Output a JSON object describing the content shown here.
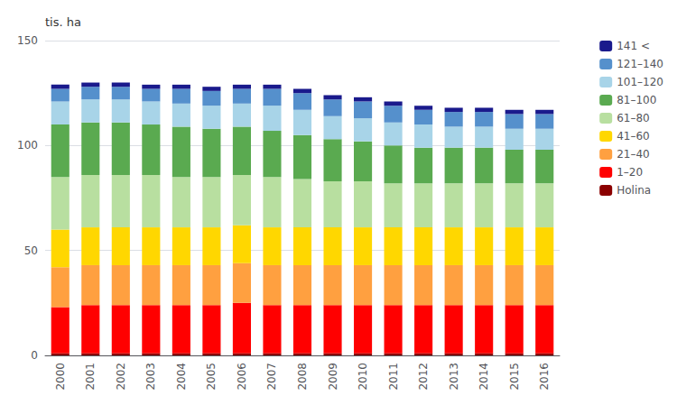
{
  "chart_data": {
    "type": "bar",
    "stacked": true,
    "ylabel": "tis. ha",
    "categories": [
      "2000",
      "2001",
      "2002",
      "2003",
      "2004",
      "2005",
      "2006",
      "2007",
      "2008",
      "2009",
      "2010",
      "2011",
      "2012",
      "2013",
      "2014",
      "2015",
      "2016"
    ],
    "series": [
      {
        "name": "Holina",
        "color": "#8b0000",
        "values": [
          1.0,
          1.0,
          1.0,
          1.0,
          1.0,
          1.0,
          1.0,
          1.0,
          1.0,
          1.0,
          1.0,
          1.0,
          1.0,
          1.0,
          1.0,
          1.0,
          1.0
        ]
      },
      {
        "name": "1–20",
        "color": "#ff0000",
        "values": [
          22,
          23,
          23,
          23,
          23,
          23,
          24,
          23,
          23,
          23,
          23,
          23,
          23,
          23,
          23,
          23,
          23
        ]
      },
      {
        "name": "21–40",
        "color": "#ffa040",
        "values": [
          19,
          19,
          19,
          19,
          19,
          19,
          19,
          19,
          19,
          19,
          19,
          19,
          19,
          19,
          19,
          19,
          19
        ]
      },
      {
        "name": "41–60",
        "color": "#ffd700",
        "values": [
          18,
          18,
          18,
          18,
          18,
          18,
          18,
          18,
          18,
          18,
          18,
          18,
          18,
          18,
          18,
          18,
          18
        ]
      },
      {
        "name": "61–80",
        "color": "#b8dfa0",
        "values": [
          25,
          25,
          25,
          25,
          24,
          24,
          24,
          24,
          23,
          22,
          22,
          21,
          21,
          21,
          21,
          21,
          21
        ]
      },
      {
        "name": "81–100",
        "color": "#5aaa50",
        "values": [
          25,
          25,
          25,
          24,
          24,
          23,
          23,
          22,
          21,
          20,
          19,
          18,
          17,
          17,
          17,
          16,
          16
        ]
      },
      {
        "name": "101–120",
        "color": "#a8d4e8",
        "values": [
          11,
          11,
          11,
          11,
          11,
          11,
          11,
          12,
          12,
          11,
          11,
          11,
          11,
          10,
          10,
          10,
          10
        ]
      },
      {
        "name": "121–140",
        "color": "#5590cc",
        "values": [
          6,
          6,
          6,
          6,
          7,
          7,
          7,
          8,
          8,
          8,
          8,
          8,
          7,
          7,
          7,
          7,
          7
        ]
      },
      {
        "name": "141 <",
        "color": "#1a1a8c",
        "values": [
          2,
          2,
          2,
          2,
          2,
          2,
          2,
          2,
          2,
          2,
          2,
          2,
          2,
          2,
          2,
          2,
          2
        ]
      }
    ],
    "ylim": [
      0,
      150
    ],
    "yticks": [
      0,
      50,
      100,
      150
    ],
    "grid": true,
    "legend": "right"
  }
}
